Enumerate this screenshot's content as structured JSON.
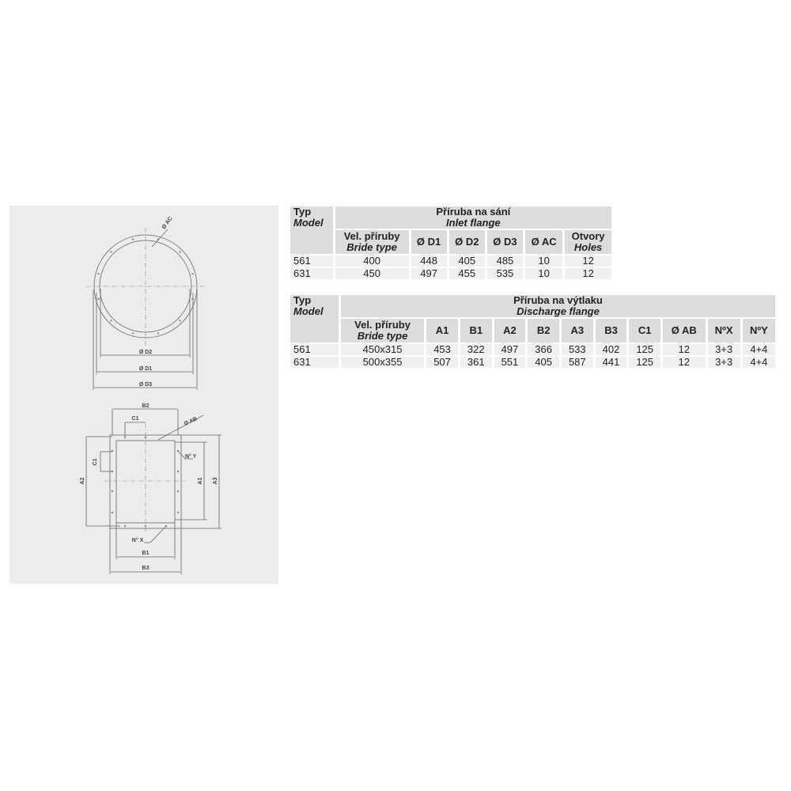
{
  "drawing": {
    "inlet_labels": {
      "ac": "Ø AC",
      "d2": "Ø D2",
      "d1": "Ø D1",
      "d3": "Ø D3"
    },
    "discharge_labels": {
      "b2": "B2",
      "c1_top": "C1",
      "ab": "Ø AB",
      "ny": "N° Y",
      "c1_side": "C1",
      "a2": "A2",
      "a1": "A1",
      "a3": "A3",
      "nx": "N° X",
      "b1": "B1",
      "b3": "B3"
    }
  },
  "inlet_table": {
    "model_cz": "Typ",
    "model_en": "Model",
    "group_cz": "Příruba na sání",
    "group_en": "Inlet flange",
    "columns": [
      {
        "cz": "Vel. příruby",
        "en": "Bride type"
      },
      {
        "cz": "Ø D1"
      },
      {
        "cz": "Ø D2"
      },
      {
        "cz": "Ø D3"
      },
      {
        "cz": "Ø AC"
      },
      {
        "cz": "Otvory",
        "en": "Holes"
      }
    ],
    "rows": [
      [
        "561",
        "400",
        "448",
        "405",
        "485",
        "10",
        "12"
      ],
      [
        "631",
        "450",
        "497",
        "455",
        "535",
        "10",
        "12"
      ]
    ]
  },
  "discharge_table": {
    "model_cz": "Typ",
    "model_en": "Model",
    "group_cz": "Příruba na výtlaku",
    "group_en": "Discharge flange",
    "columns": [
      {
        "cz": "Vel. příruby",
        "en": "Bride type"
      },
      {
        "cz": "A1"
      },
      {
        "cz": "B1"
      },
      {
        "cz": "A2"
      },
      {
        "cz": "B2"
      },
      {
        "cz": "A3"
      },
      {
        "cz": "B3"
      },
      {
        "cz": "C1"
      },
      {
        "cz": "Ø AB"
      },
      {
        "cz": "NºX"
      },
      {
        "cz": "NºY"
      }
    ],
    "rows": [
      [
        "561",
        "450x315",
        "453",
        "322",
        "497",
        "366",
        "533",
        "402",
        "125",
        "12",
        "3+3",
        "4+4"
      ],
      [
        "631",
        "500x355",
        "507",
        "361",
        "551",
        "405",
        "587",
        "441",
        "125",
        "12",
        "3+3",
        "4+4"
      ]
    ]
  }
}
